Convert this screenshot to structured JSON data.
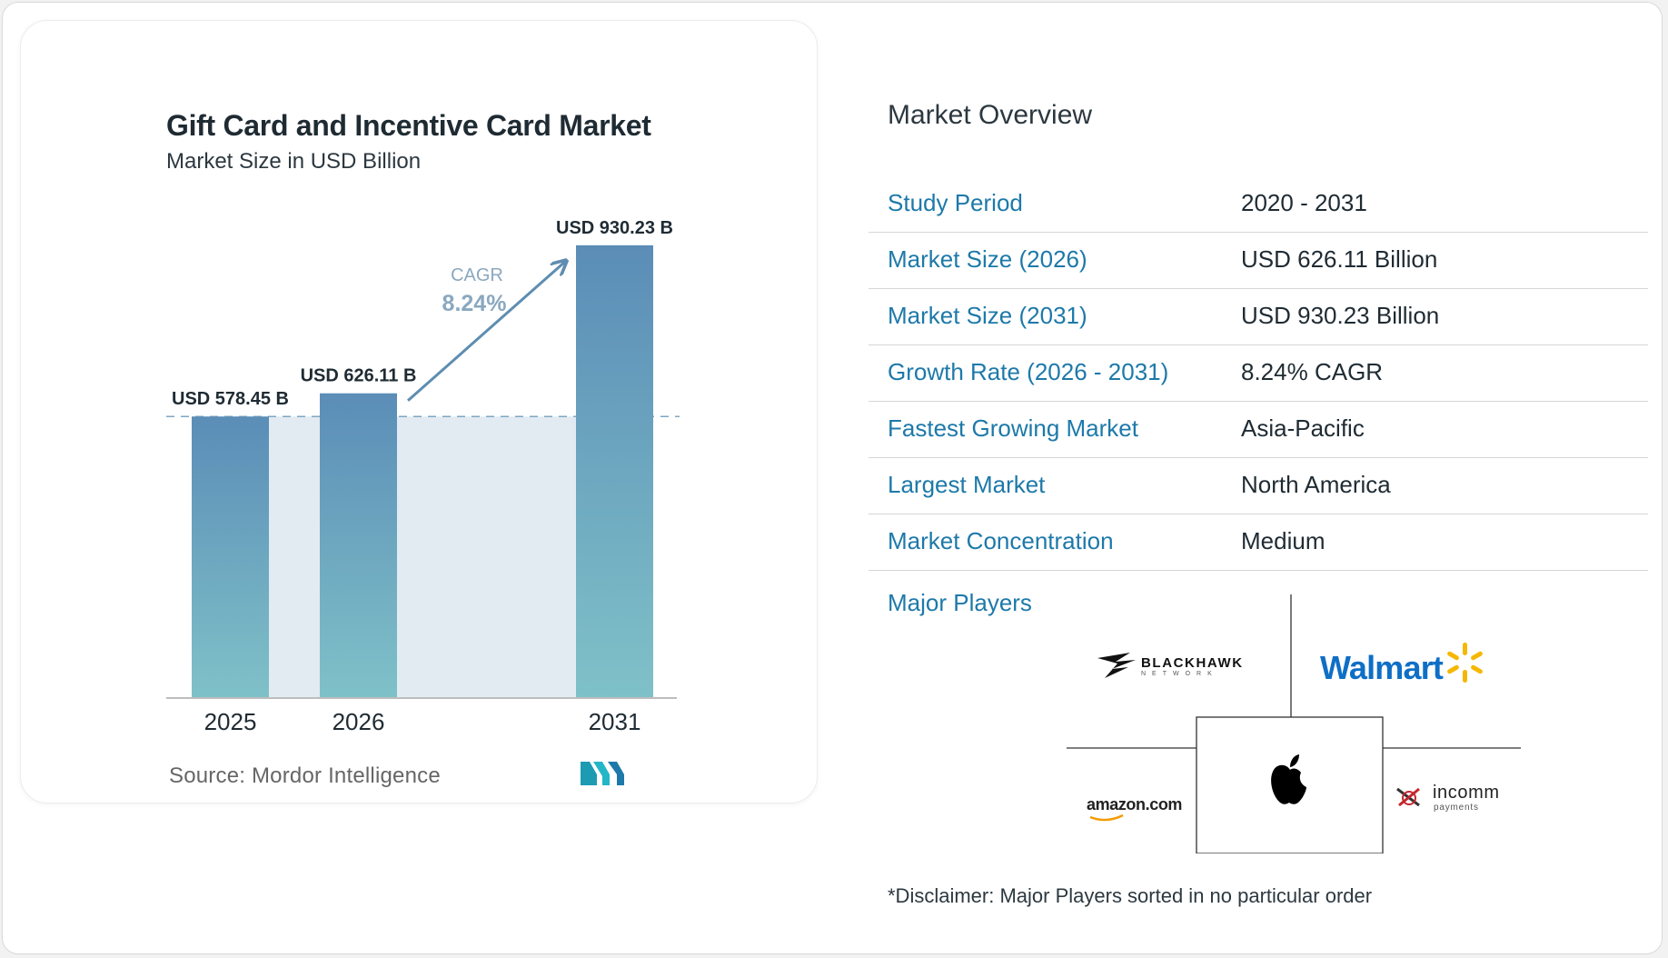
{
  "chart_data": {
    "type": "bar",
    "title": "Gift Card and Incentive Card Market",
    "subtitle": "Market Size in USD Billion",
    "categories": [
      "2025",
      "2026",
      "2031"
    ],
    "values": [
      578.45,
      626.11,
      930.23
    ],
    "value_labels": [
      "USD 578.45 B",
      "USD 626.11 B",
      "USD 930.23 B"
    ],
    "cagr_label": "CAGR",
    "cagr_value": "8.24%",
    "source": "Source: Mordor Intelligence",
    "colors": {
      "bar_top": "#5b8db7",
      "bar_bottom": "#7fc1c8",
      "band": "#e2ebf2",
      "arrow": "#5e8db0",
      "cagr": "#8aa8bf"
    }
  },
  "overview": {
    "title": "Market Overview",
    "rows": [
      {
        "label": "Study Period",
        "value": "2020 - 2031"
      },
      {
        "label": "Market Size (2026)",
        "value": "USD 626.11 Billion"
      },
      {
        "label": "Market Size (2031)",
        "value": "USD 930.23 Billion"
      },
      {
        "label": "Growth Rate (2026 - 2031)",
        "value": "8.24% CAGR"
      },
      {
        "label": "Fastest Growing Market",
        "value": "Asia-Pacific"
      },
      {
        "label": "Largest Market",
        "value": "North America"
      },
      {
        "label": "Market Concentration",
        "value": "Medium"
      }
    ],
    "players_label": "Major Players",
    "players": {
      "blackhawk": "BLACKHAWK",
      "blackhawk_sub": "NETWORK",
      "walmart": "Walmart",
      "amazon": "amazon.com",
      "incomm": "incomm",
      "incomm_sub": "payments"
    },
    "disclaimer": "*Disclaimer: Major Players sorted in no particular order"
  }
}
